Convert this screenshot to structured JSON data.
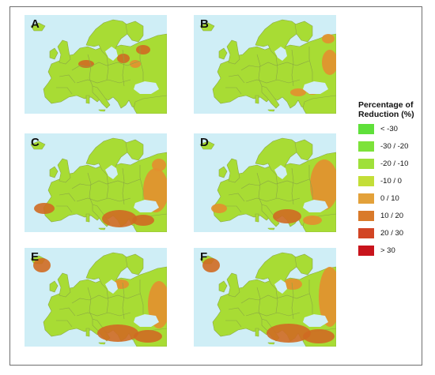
{
  "panels": [
    {
      "label": "A",
      "hotspots": [
        [
          125,
          55,
          8,
          6,
          1
        ],
        [
          150,
          44,
          9,
          6,
          1
        ],
        [
          78,
          62,
          10,
          5,
          1
        ],
        [
          140,
          62,
          7,
          5,
          0
        ]
      ]
    },
    {
      "label": "B",
      "hotspots": [
        [
          172,
          60,
          10,
          16,
          0
        ],
        [
          132,
          98,
          10,
          5,
          0
        ],
        [
          170,
          30,
          8,
          6,
          0
        ],
        [
          150,
          96,
          8,
          5,
          0
        ]
      ]
    },
    {
      "label": "C",
      "hotspots": [
        [
          166,
          72,
          16,
          28,
          0
        ],
        [
          120,
          108,
          22,
          11,
          1
        ],
        [
          25,
          95,
          13,
          7,
          1
        ],
        [
          150,
          110,
          14,
          7,
          1
        ],
        [
          170,
          40,
          9,
          8,
          0
        ]
      ]
    },
    {
      "label": "D",
      "hotspots": [
        [
          165,
          65,
          18,
          32,
          0
        ],
        [
          118,
          105,
          18,
          9,
          1
        ],
        [
          32,
          95,
          10,
          6,
          0
        ],
        [
          150,
          110,
          12,
          6,
          0
        ]
      ]
    },
    {
      "label": "E",
      "hotspots": [
        [
          22,
          22,
          11,
          9,
          1
        ],
        [
          170,
          72,
          14,
          30,
          0
        ],
        [
          118,
          108,
          26,
          11,
          1
        ],
        [
          156,
          112,
          18,
          8,
          1
        ],
        [
          122,
          46,
          10,
          6,
          0
        ]
      ]
    },
    {
      "label": "F",
      "hotspots": [
        [
          22,
          22,
          11,
          9,
          1
        ],
        [
          172,
          62,
          14,
          38,
          0
        ],
        [
          120,
          108,
          28,
          12,
          1
        ],
        [
          158,
          112,
          20,
          9,
          1
        ],
        [
          125,
          46,
          12,
          7,
          0
        ]
      ]
    }
  ],
  "colors": {
    "sea": "#cfeef6",
    "land": "#a8dc34",
    "orange": "#e38f2f",
    "dark_orange": "#cf6a22",
    "border": "#8aa844"
  },
  "legend": {
    "title": "Percentage of Reduction (%)",
    "items": [
      {
        "label": "< -30",
        "color": "#5fe03a"
      },
      {
        "label": "-30 / -20",
        "color": "#7de23a"
      },
      {
        "label": "-20 / -10",
        "color": "#9fe03a"
      },
      {
        "label": "-10 / 0",
        "color": "#c3de38"
      },
      {
        "label": "0 / 10",
        "color": "#e3a13a"
      },
      {
        "label": "10 / 20",
        "color": "#d97a2a"
      },
      {
        "label": "20 / 30",
        "color": "#d24524"
      },
      {
        "label": "> 30",
        "color": "#c8141c"
      }
    ]
  }
}
